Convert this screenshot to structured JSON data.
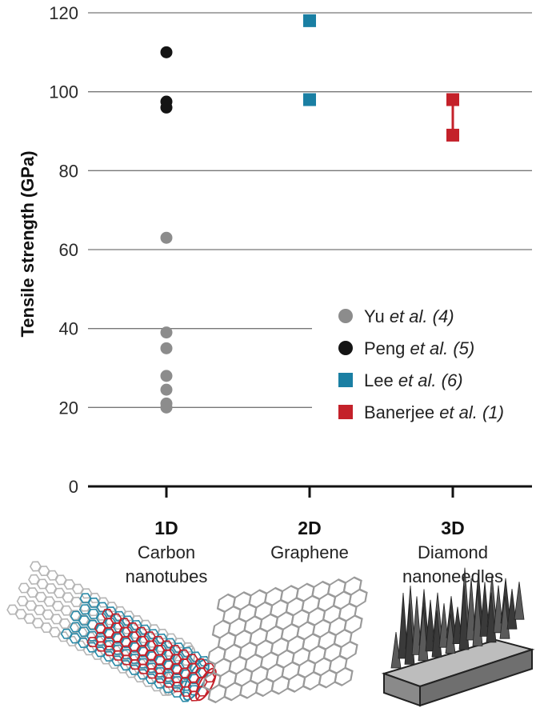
{
  "chart_data": {
    "type": "scatter",
    "ylabel": "Tensile strength (GPa)",
    "ylim": [
      0,
      120
    ],
    "yticks": [
      0,
      20,
      40,
      60,
      80,
      100,
      120
    ],
    "grid": true,
    "categories": [
      {
        "key": "1D",
        "name": "Carbon nanotubes",
        "lines": [
          "Carbon",
          "nanotubes"
        ]
      },
      {
        "key": "2D",
        "name": "Graphene",
        "lines": [
          "Graphene"
        ]
      },
      {
        "key": "3D",
        "name": "Diamond nanoneedles",
        "lines": [
          "Diamond",
          "nanoneedles"
        ]
      }
    ],
    "series": [
      {
        "name": "Yu et al. (4)",
        "author": "Yu",
        "ref": "(4)",
        "marker": "circle",
        "color": "#8c8c8c",
        "category": "1D",
        "values": [
          63,
          39,
          35,
          28,
          24.5,
          21,
          20
        ]
      },
      {
        "name": "Peng et al. (5)",
        "author": "Peng",
        "ref": "(5)",
        "marker": "circle",
        "color": "#141414",
        "category": "1D",
        "values": [
          110,
          97.5,
          96
        ]
      },
      {
        "name": "Lee et al. (6)",
        "author": "Lee",
        "ref": "(6)",
        "marker": "square",
        "color": "#1a7fa3",
        "category": "2D",
        "values": [
          118,
          98
        ]
      },
      {
        "name": "Banerjee et al. (1)",
        "author": "Banerjee",
        "ref": "(1)",
        "marker": "square",
        "color": "#c4212a",
        "category": "3D",
        "values": [
          98,
          89
        ],
        "connected": true
      }
    ],
    "legend_position": "right",
    "legend_italic": "et al."
  },
  "illustrations": {
    "nanotube": "carbon-nanotube-illustration",
    "graphene": "graphene-sheet-illustration",
    "diamond": "diamond-nanoneedles-illustration"
  }
}
